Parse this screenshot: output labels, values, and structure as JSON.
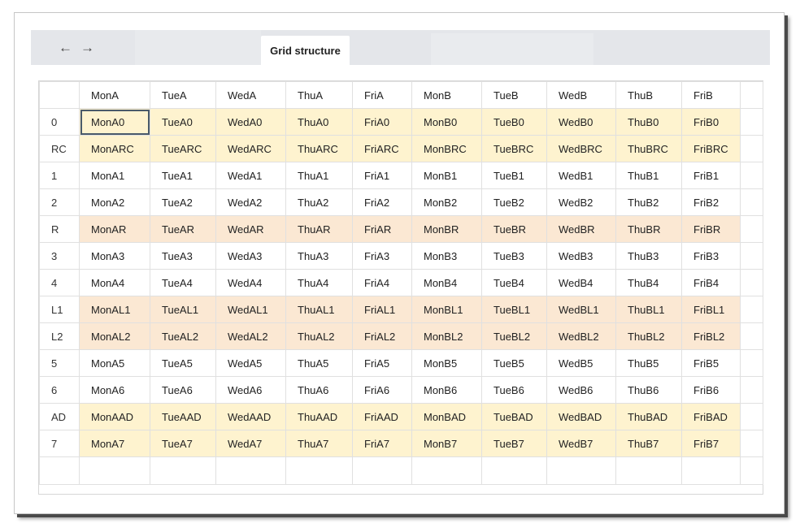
{
  "nav": {
    "back_icon": "←",
    "forward_icon": "→"
  },
  "tabs": {
    "active_label": "Grid structure"
  },
  "grid": {
    "columns": [
      "MonA",
      "TueA",
      "WedA",
      "ThuA",
      "FriA",
      "MonB",
      "TueB",
      "WedB",
      "ThuB",
      "FriB"
    ],
    "rows": [
      {
        "label": "0",
        "style": "yellow",
        "cells": [
          "MonA0",
          "TueA0",
          "WedA0",
          "ThuA0",
          "FriA0",
          "MonB0",
          "TueB0",
          "WedB0",
          "ThuB0",
          "FriB0"
        ]
      },
      {
        "label": "RC",
        "style": "yellow",
        "cells": [
          "MonARC",
          "TueARC",
          "WedARC",
          "ThuARC",
          "FriARC",
          "MonBRC",
          "TueBRC",
          "WedBRC",
          "ThuBRC",
          "FriBRC"
        ]
      },
      {
        "label": "1",
        "style": "plain",
        "cells": [
          "MonA1",
          "TueA1",
          "WedA1",
          "ThuA1",
          "FriA1",
          "MonB1",
          "TueB1",
          "WedB1",
          "ThuB1",
          "FriB1"
        ]
      },
      {
        "label": "2",
        "style": "plain",
        "cells": [
          "MonA2",
          "TueA2",
          "WedA2",
          "ThuA2",
          "FriA2",
          "MonB2",
          "TueB2",
          "WedB2",
          "ThuB2",
          "FriB2"
        ]
      },
      {
        "label": "R",
        "style": "orange",
        "cells": [
          "MonAR",
          "TueAR",
          "WedAR",
          "ThuAR",
          "FriAR",
          "MonBR",
          "TueBR",
          "WedBR",
          "ThuBR",
          "FriBR"
        ]
      },
      {
        "label": "3",
        "style": "plain",
        "cells": [
          "MonA3",
          "TueA3",
          "WedA3",
          "ThuA3",
          "FriA3",
          "MonB3",
          "TueB3",
          "WedB3",
          "ThuB3",
          "FriB3"
        ]
      },
      {
        "label": "4",
        "style": "plain",
        "cells": [
          "MonA4",
          "TueA4",
          "WedA4",
          "ThuA4",
          "FriA4",
          "MonB4",
          "TueB4",
          "WedB4",
          "ThuB4",
          "FriB4"
        ]
      },
      {
        "label": "L1",
        "style": "orange",
        "cells": [
          "MonAL1",
          "TueAL1",
          "WedAL1",
          "ThuAL1",
          "FriAL1",
          "MonBL1",
          "TueBL1",
          "WedBL1",
          "ThuBL1",
          "FriBL1"
        ]
      },
      {
        "label": "L2",
        "style": "orange",
        "cells": [
          "MonAL2",
          "TueAL2",
          "WedAL2",
          "ThuAL2",
          "FriAL2",
          "MonBL2",
          "TueBL2",
          "WedBL2",
          "ThuBL2",
          "FriBL2"
        ]
      },
      {
        "label": "5",
        "style": "plain",
        "cells": [
          "MonA5",
          "TueA5",
          "WedA5",
          "ThuA5",
          "FriA5",
          "MonB5",
          "TueB5",
          "WedB5",
          "ThuB5",
          "FriB5"
        ]
      },
      {
        "label": "6",
        "style": "plain",
        "cells": [
          "MonA6",
          "TueA6",
          "WedA6",
          "ThuA6",
          "FriA6",
          "MonB6",
          "TueB6",
          "WedB6",
          "ThuB6",
          "FriB6"
        ]
      },
      {
        "label": "AD",
        "style": "yellow",
        "cells": [
          "MonAAD",
          "TueAAD",
          "WedAAD",
          "ThuAAD",
          "FriAAD",
          "MonBAD",
          "TueBAD",
          "WedBAD",
          "ThuBAD",
          "FriBAD"
        ]
      },
      {
        "label": "7",
        "style": "yellow",
        "cells": [
          "MonA7",
          "TueA7",
          "WedA7",
          "ThuA7",
          "FriA7",
          "MonB7",
          "TueB7",
          "WedB7",
          "ThuB7",
          "FriB7"
        ]
      }
    ],
    "selected_cell": "MonA0"
  },
  "colors": {
    "yellow_row": "#fef3cf",
    "orange_row": "#fbe8d3",
    "tabbar": "#e4e6ea"
  }
}
